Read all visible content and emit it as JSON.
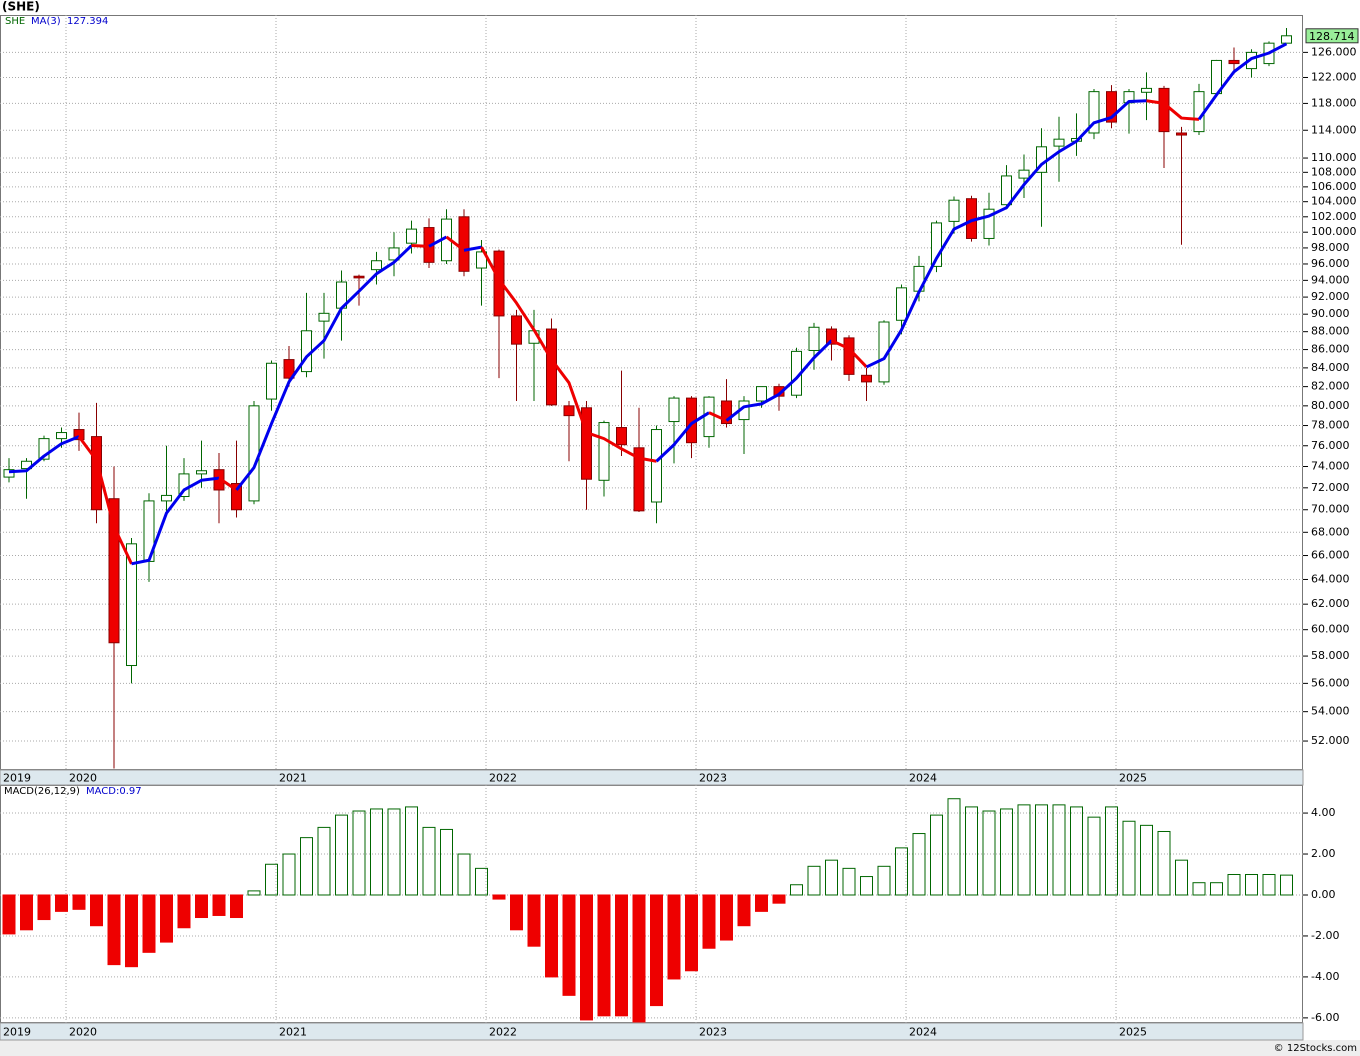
{
  "chart_data": [
    {
      "type": "candlestick",
      "title": "(SHE)",
      "name": "SHE",
      "categories": [
        "2019",
        null,
        null,
        null,
        "2020",
        null,
        null,
        null,
        null,
        null,
        null,
        null,
        null,
        null,
        null,
        null,
        "2021",
        null,
        null,
        null,
        null,
        null,
        null,
        null,
        null,
        null,
        null,
        null,
        "2022",
        null,
        null,
        null,
        null,
        null,
        null,
        null,
        null,
        null,
        null,
        null,
        "2023",
        null,
        null,
        null,
        null,
        null,
        null,
        null,
        null,
        null,
        null,
        null,
        "2024",
        null,
        null,
        null,
        null,
        null,
        null,
        null,
        null,
        null,
        null,
        null,
        "2025",
        null,
        null,
        null,
        null,
        null,
        null,
        null,
        null,
        null
      ],
      "open": [
        73,
        73.8,
        74.7,
        76.7,
        77.6,
        76.9,
        71,
        57.3,
        65.5,
        70.8,
        71.2,
        73.3,
        73.7,
        72.4,
        70.8,
        80.7,
        84.9,
        83.6,
        89.2,
        90.7,
        94.5,
        95.3,
        96.5,
        98.6,
        100.6,
        96.4,
        102,
        95.5,
        97.6,
        89.8,
        86.7,
        88.3,
        80,
        79.8,
        72.7,
        77.8,
        75.8,
        70.7,
        78.4,
        80.8,
        76.9,
        80.5,
        78.6,
        80.5,
        82,
        81.1,
        85.9,
        88.3,
        87.3,
        83.2,
        82.5,
        89.3,
        92.7,
        95.7,
        101.4,
        104.4,
        99.2,
        103.6,
        107.2,
        108,
        111.7,
        112.4,
        113.6,
        119.8,
        118.1,
        119.7,
        120.3,
        113.6,
        113.8,
        119.5,
        124.7,
        123.4,
        124.2,
        127.5
      ],
      "high": [
        74.8,
        74.8,
        77,
        77.8,
        79.3,
        80.3,
        74,
        67.5,
        71.5,
        76,
        74.8,
        76.5,
        75.3,
        76.5,
        80.5,
        84.8,
        86.4,
        92.5,
        92.5,
        95.2,
        94.7,
        97.5,
        100,
        101.5,
        101.8,
        103,
        103,
        99,
        97.8,
        90.5,
        90.5,
        89.5,
        80.5,
        80.5,
        78.5,
        83.7,
        79.8,
        78,
        81,
        81,
        81,
        82.8,
        81,
        82,
        82.3,
        86.2,
        89,
        88.6,
        87.6,
        84,
        89.3,
        93.5,
        97,
        101.5,
        104.7,
        104.8,
        105.2,
        109,
        110.5,
        114.3,
        116,
        116.5,
        120.2,
        120.8,
        120.2,
        122.8,
        120.7,
        114.5,
        121,
        124.8,
        126.8,
        126.5,
        127.8,
        130
      ],
      "low": [
        72.5,
        71,
        74.5,
        75.8,
        75.5,
        68.8,
        50.2,
        56,
        63.8,
        69.8,
        70.8,
        72,
        68.8,
        69.3,
        70.5,
        79.5,
        82,
        83,
        85,
        87,
        91,
        93.5,
        94.5,
        97.3,
        95.5,
        96,
        94.5,
        91,
        82.9,
        80.5,
        80.5,
        80,
        74.5,
        70,
        71.2,
        75,
        69.8,
        68.8,
        74.3,
        74.8,
        75.8,
        77.8,
        75.2,
        79.8,
        79.5,
        80.8,
        83.8,
        84.8,
        82.6,
        80.5,
        82.2,
        87.7,
        91.5,
        95,
        99.8,
        98.8,
        98.3,
        103,
        104.5,
        100.7,
        106.7,
        110.3,
        112.7,
        114.3,
        113.5,
        115.5,
        108.6,
        98.4,
        113.3,
        119,
        122.5,
        122,
        123.8,
        127.5
      ],
      "close": [
        73.7,
        74.5,
        76.7,
        77.3,
        76.6,
        70,
        59,
        67,
        70.8,
        71.3,
        73.3,
        73.6,
        71.8,
        70,
        80,
        84.5,
        82.9,
        88.1,
        90.1,
        93.8,
        94.3,
        96.4,
        98,
        100.4,
        96.2,
        101.7,
        95.1,
        97.5,
        89.8,
        86.6,
        88.1,
        80.1,
        79,
        72.8,
        78.3,
        76.1,
        69.9,
        77.6,
        80.8,
        76.3,
        80.9,
        78.2,
        80.5,
        82,
        81,
        85.8,
        88.5,
        86.6,
        83.3,
        82.5,
        89.1,
        93.1,
        95.7,
        101.2,
        104.2,
        99.2,
        103,
        107.5,
        108.3,
        111.6,
        112.7,
        112.8,
        119.8,
        115.2,
        119.8,
        120.3,
        113.8,
        113.3,
        119.8,
        124.7,
        124.2,
        126,
        127.5,
        128.714
      ],
      "up_color": "#ffffff",
      "down_color": "#ee0000",
      "outline_color": "#006600",
      "down_outline_color": "#880000",
      "ma": {
        "name": "MA(3)",
        "up_color": "#0000ee",
        "down_color": "#ee0000",
        "values": [
          73.5,
          73.6,
          75,
          76.2,
          76.9,
          74.6,
          68.5,
          65.3,
          65.6,
          69.7,
          71.8,
          72.7,
          72.9,
          71.8,
          73.9,
          78.2,
          82.5,
          85.2,
          87,
          90.7,
          92.7,
          94.8,
          96.2,
          98.3,
          98.2,
          99.4,
          97.7,
          98.1,
          94.1,
          91.3,
          88.2,
          84.9,
          82.4,
          77.3,
          76.7,
          75.7,
          74.8,
          74.5,
          76.1,
          78.2,
          79.3,
          78.5,
          79.9,
          80.2,
          81.2,
          82.9,
          85.1,
          87,
          86.1,
          84.1,
          85,
          88.2,
          92.6,
          96.7,
          100.4,
          101.5,
          102.1,
          103.2,
          106.3,
          109.1,
          110.9,
          112.4,
          115.1,
          115.9,
          118.3,
          118.4,
          118,
          115.8,
          115.6,
          119.3,
          122.9,
          125,
          125.9,
          127.394
        ]
      },
      "last_price_color": "#99ee99",
      "log_scale": true,
      "grid": true,
      "ylim": [
        50.1,
        132.2
      ],
      "yticks": [
        {
          "value": 52,
          "label": "52.000"
        },
        {
          "value": 54,
          "label": "54.000"
        },
        {
          "value": 56,
          "label": "56.000"
        },
        {
          "value": 58,
          "label": "58.000"
        },
        {
          "value": 60,
          "label": "60.000"
        },
        {
          "value": 62,
          "label": "62.000"
        },
        {
          "value": 64,
          "label": "64.000"
        },
        {
          "value": 66,
          "label": "66.000"
        },
        {
          "value": 68,
          "label": "68.000"
        },
        {
          "value": 70,
          "label": "70.000"
        },
        {
          "value": 72,
          "label": "72.000"
        },
        {
          "value": 74,
          "label": "74.000"
        },
        {
          "value": 76,
          "label": "76.000"
        },
        {
          "value": 78,
          "label": "78.000"
        },
        {
          "value": 80,
          "label": "80.000"
        },
        {
          "value": 82,
          "label": "82.000"
        },
        {
          "value": 84,
          "label": "84.000"
        },
        {
          "value": 86,
          "label": "86.000"
        },
        {
          "value": 88,
          "label": "88.000"
        },
        {
          "value": 90,
          "label": "90.000"
        },
        {
          "value": 92,
          "label": "92.000"
        },
        {
          "value": 94,
          "label": "94.000"
        },
        {
          "value": 96,
          "label": "96.000"
        },
        {
          "value": 98,
          "label": "98.000"
        },
        {
          "value": 100,
          "label": "100.000"
        },
        {
          "value": 102,
          "label": "102.000"
        },
        {
          "value": 104,
          "label": "104.000"
        },
        {
          "value": 106,
          "label": "106.000"
        },
        {
          "value": 108,
          "label": "108.000"
        },
        {
          "value": 110,
          "label": "110.000"
        },
        {
          "value": 114,
          "label": "114.000"
        },
        {
          "value": 118,
          "label": "118.000"
        },
        {
          "value": 122,
          "label": "122.000"
        },
        {
          "value": 126,
          "label": "126.000"
        }
      ]
    },
    {
      "type": "bar",
      "name": "MACD(26,12,9)",
      "legend_label": "MACD:0.97",
      "categories": [
        "2019",
        null,
        null,
        null,
        "2020",
        null,
        null,
        null,
        null,
        null,
        null,
        null,
        null,
        null,
        null,
        null,
        "2021",
        null,
        null,
        null,
        null,
        null,
        null,
        null,
        null,
        null,
        null,
        null,
        "2022",
        null,
        null,
        null,
        null,
        null,
        null,
        null,
        null,
        null,
        null,
        null,
        "2023",
        null,
        null,
        null,
        null,
        null,
        null,
        null,
        null,
        null,
        null,
        null,
        "2024",
        null,
        null,
        null,
        null,
        null,
        null,
        null,
        null,
        null,
        null,
        null,
        "2025",
        null,
        null,
        null,
        null,
        null,
        null,
        null,
        null,
        null
      ],
      "values": [
        -1.9,
        -1.7,
        -1.2,
        -0.8,
        -0.7,
        -1.5,
        -3.4,
        -3.5,
        -2.8,
        -2.3,
        -1.6,
        -1.1,
        -1.0,
        -1.1,
        0.2,
        1.5,
        2.0,
        2.8,
        3.3,
        3.9,
        4.1,
        4.2,
        4.2,
        4.3,
        3.3,
        3.2,
        2.0,
        1.3,
        -0.2,
        -1.7,
        -2.5,
        -4.0,
        -4.9,
        -6.1,
        -5.9,
        -5.9,
        -6.2,
        -5.4,
        -4.1,
        -3.7,
        -2.6,
        -2.2,
        -1.5,
        -0.8,
        -0.4,
        0.5,
        1.4,
        1.7,
        1.3,
        0.9,
        1.4,
        2.3,
        3.0,
        3.9,
        4.7,
        4.3,
        4.1,
        4.2,
        4.4,
        4.4,
        4.4,
        4.3,
        3.8,
        4.3,
        3.6,
        3.4,
        3.1,
        1.7,
        0.6,
        0.6,
        1.0,
        1.0,
        1.0,
        0.97
      ],
      "positive_color": "#006600",
      "negative_color": "#ee0000",
      "grid": true,
      "ylim": [
        -6.25,
        5.37
      ],
      "yticks": [
        {
          "value": 4,
          "label": "4.00"
        },
        {
          "value": 2,
          "label": "2.00"
        },
        {
          "value": 0,
          "label": "0.00"
        },
        {
          "value": -2,
          "label": "-2.00"
        },
        {
          "value": -4,
          "label": "-4.00"
        },
        {
          "value": -6,
          "label": "-6.00"
        }
      ]
    }
  ],
  "footer": "© 12Stocks.com"
}
